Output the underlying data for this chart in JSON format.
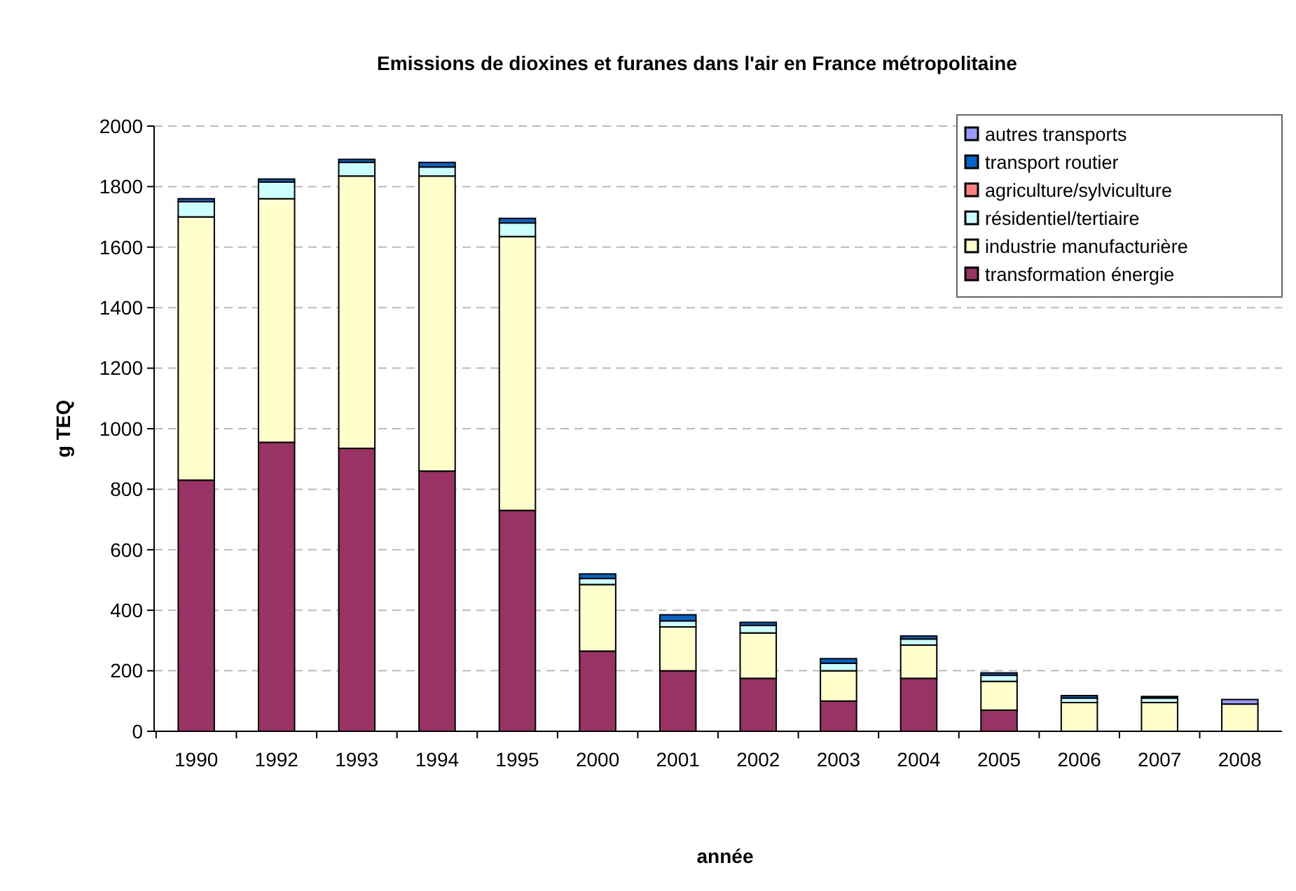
{
  "chart_data": {
    "type": "bar",
    "stacked": true,
    "title": "Emissions de dioxines et furanes dans l'air en France métropolitaine",
    "xlabel": "année",
    "ylabel": "g TEQ",
    "categories": [
      "1990",
      "1992",
      "1993",
      "1994",
      "1995",
      "2000",
      "2001",
      "2002",
      "2003",
      "2004",
      "2005",
      "2006",
      "2007",
      "2008"
    ],
    "series": [
      {
        "name": "transformation énergie",
        "color": "#993366",
        "values": [
          830,
          955,
          935,
          860,
          730,
          265,
          200,
          175,
          100,
          175,
          70,
          0,
          0,
          0
        ]
      },
      {
        "name": "industrie manufacturière",
        "color": "#ffffcc",
        "values": [
          870,
          805,
          900,
          975,
          905,
          220,
          145,
          150,
          100,
          110,
          95,
          95,
          95,
          90
        ]
      },
      {
        "name": "résidentiel/tertiaire",
        "color": "#ccffff",
        "values": [
          50,
          55,
          45,
          30,
          45,
          20,
          20,
          25,
          25,
          20,
          20,
          15,
          15,
          null
        ]
      },
      {
        "name": "agriculture/sylviculture",
        "color": "#ff8080",
        "values": [
          null,
          null,
          null,
          null,
          null,
          null,
          null,
          null,
          null,
          null,
          null,
          null,
          null,
          null
        ]
      },
      {
        "name": "transport routier",
        "color": "#0066cc",
        "values": [
          10,
          10,
          10,
          15,
          15,
          15,
          20,
          10,
          15,
          10,
          8,
          8,
          5,
          null
        ]
      },
      {
        "name": "autres transports",
        "color": "#9999ff",
        "values": [
          null,
          null,
          null,
          null,
          null,
          null,
          null,
          null,
          null,
          null,
          null,
          null,
          null,
          15
        ]
      }
    ],
    "ylim": [
      0,
      2000
    ],
    "yticks": [
      0,
      200,
      400,
      600,
      800,
      1000,
      1200,
      1400,
      1600,
      1800,
      2000
    ],
    "grid": "y",
    "legend": "top right"
  }
}
